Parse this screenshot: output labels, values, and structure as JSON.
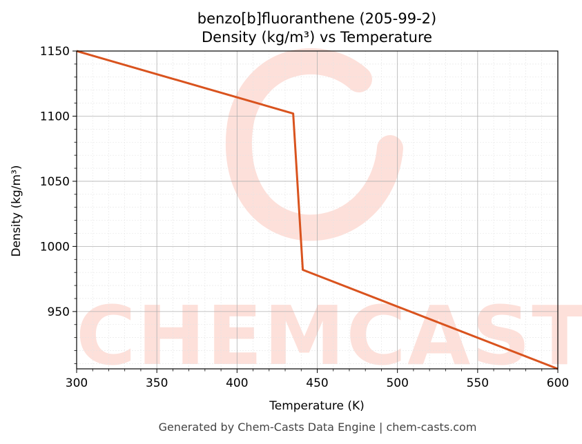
{
  "chart_data": {
    "type": "line",
    "title_line1": "benzo[b]fluoranthene (205-99-2)",
    "title_line2": "Density (kg/m³) vs Temperature",
    "xlabel": "Temperature (K)",
    "ylabel": "Density (kg/m³)",
    "xlim": [
      300,
      600
    ],
    "ylim": [
      906,
      1150
    ],
    "x_ticks": [
      300,
      350,
      400,
      450,
      500,
      550,
      600
    ],
    "y_ticks": [
      950,
      1000,
      1050,
      1100,
      1150
    ],
    "grid": true,
    "series": [
      {
        "color": "#d9531e",
        "x": [
          300,
          435,
          441,
          600
        ],
        "y": [
          1150,
          1102,
          982,
          906
        ]
      }
    ]
  },
  "watermark": {
    "text": "CHEMCASTS",
    "color": "#fde0da"
  },
  "footer": "Generated by Chem-Casts Data Engine | chem-casts.com"
}
